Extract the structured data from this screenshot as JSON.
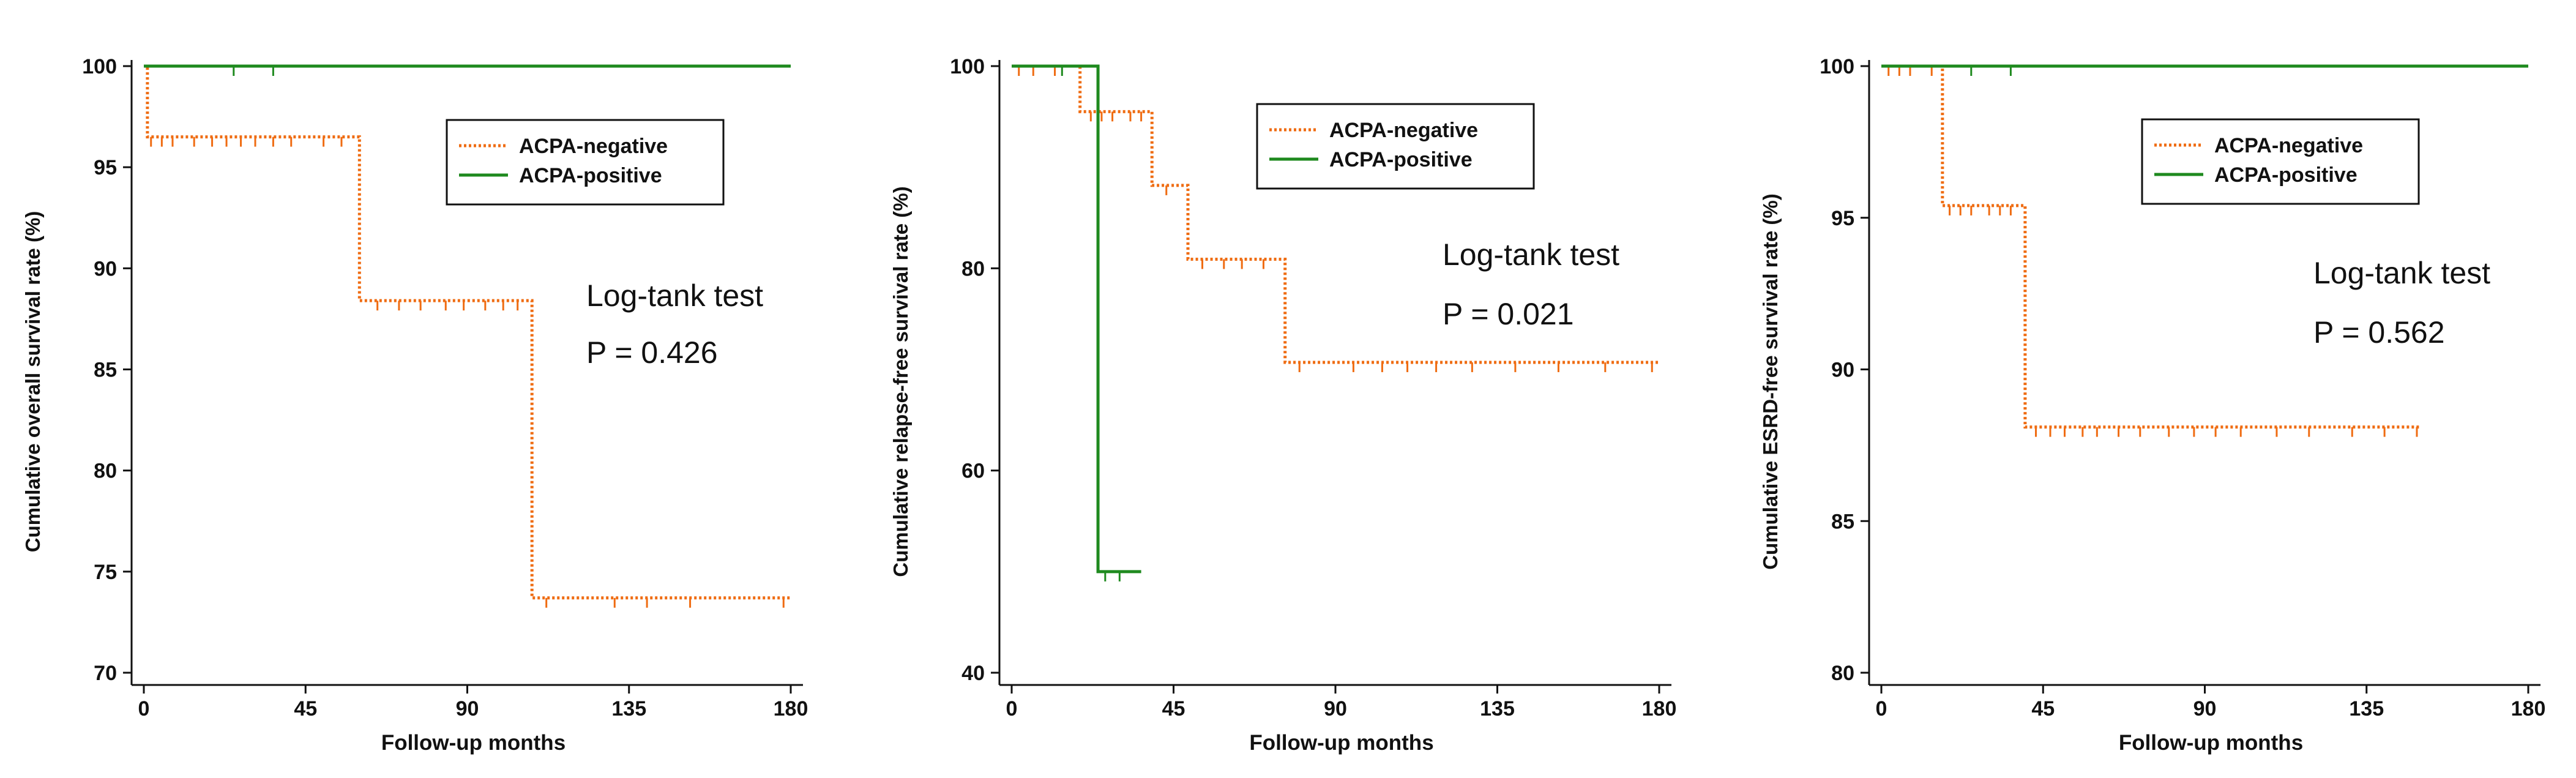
{
  "colors": {
    "negative": "#ef6c12",
    "positive": "#1f8a1f",
    "axis": "#111111"
  },
  "chart_data": [
    {
      "type": "line",
      "subtype": "kaplan-meier",
      "ylabel": "Cumulative overall survival rate (%)",
      "xlabel": "Follow-up months",
      "ylim": [
        70,
        100
      ],
      "xlim": [
        0,
        180
      ],
      "yticks": [
        70,
        75,
        80,
        85,
        90,
        95,
        100
      ],
      "xticks": [
        0,
        45,
        90,
        135,
        180
      ],
      "legend": {
        "position": "top-center",
        "entries": [
          "ACPA-negative",
          "ACPA-positive"
        ]
      },
      "annotation": {
        "test": "Log-tank test",
        "pvalue": "P = 0.426"
      },
      "series": [
        {
          "name": "ACPA-negative",
          "style": "dotted",
          "color": "#ef6c12",
          "steps": [
            [
              0,
              100
            ],
            [
              1,
              96.5
            ],
            [
              60,
              88.4
            ],
            [
              108,
              73.7
            ],
            [
              180,
              73.7
            ]
          ],
          "censors": [
            2,
            5,
            8,
            14,
            19,
            23,
            27,
            31,
            36,
            41,
            50,
            55,
            65,
            71,
            77,
            84,
            89,
            95,
            100,
            104,
            112,
            131,
            140,
            152,
            178
          ]
        },
        {
          "name": "ACPA-positive",
          "style": "solid",
          "color": "#1f8a1f",
          "steps": [
            [
              0,
              100
            ],
            [
              180,
              100
            ]
          ],
          "censors": [
            25,
            36
          ]
        }
      ]
    },
    {
      "type": "line",
      "subtype": "kaplan-meier",
      "ylabel": "Cumulative relapse-free survival rate (%)",
      "xlabel": "Follow-up months",
      "ylim": [
        40,
        100
      ],
      "xlim": [
        0,
        180
      ],
      "yticks": [
        40,
        60,
        80,
        100
      ],
      "xticks": [
        0,
        45,
        90,
        135,
        180
      ],
      "legend": {
        "position": "top-center",
        "entries": [
          "ACPA-negative",
          "ACPA-positive"
        ]
      },
      "annotation": {
        "test": "Log-tank test",
        "pvalue": "P = 0.021"
      },
      "series": [
        {
          "name": "ACPA-negative",
          "style": "dotted",
          "color": "#ef6c12",
          "steps": [
            [
              0,
              100
            ],
            [
              19,
              95.5
            ],
            [
              39,
              88.2
            ],
            [
              49,
              80.9
            ],
            [
              76,
              70.7
            ],
            [
              180,
              70.7
            ]
          ],
          "censors": [
            2,
            6,
            12,
            22,
            25,
            28,
            33,
            36,
            43,
            53,
            59,
            64,
            70,
            80,
            95,
            103,
            110,
            118,
            128,
            140,
            152,
            165,
            178
          ]
        },
        {
          "name": "ACPA-positive",
          "style": "solid",
          "color": "#1f8a1f",
          "steps": [
            [
              0,
              100
            ],
            [
              24,
              50
            ],
            [
              36,
              50
            ]
          ],
          "censors": [
            14,
            26,
            30
          ]
        }
      ]
    },
    {
      "type": "line",
      "subtype": "kaplan-meier",
      "ylabel": "Cumulative ESRD-free survival rate (%)",
      "xlabel": "Follow-up months",
      "ylim": [
        80,
        100
      ],
      "xlim": [
        0,
        180
      ],
      "yticks": [
        80,
        85,
        90,
        95,
        100
      ],
      "xticks": [
        0,
        45,
        90,
        135,
        180
      ],
      "legend": {
        "position": "top-center",
        "entries": [
          "ACPA-negative",
          "ACPA-positive"
        ]
      },
      "annotation": {
        "test": "Log-tank test",
        "pvalue": "P = 0.562"
      },
      "series": [
        {
          "name": "ACPA-negative",
          "style": "dotted",
          "color": "#ef6c12",
          "steps": [
            [
              0,
              100
            ],
            [
              17,
              95.4
            ],
            [
              40,
              88.1
            ],
            [
              150,
              88.1
            ]
          ],
          "censors": [
            2,
            5,
            8,
            14,
            19,
            22,
            25,
            30,
            33,
            36,
            43,
            47,
            51,
            56,
            60,
            66,
            72,
            80,
            87,
            93,
            100,
            110,
            119,
            131,
            140,
            149
          ]
        },
        {
          "name": "ACPA-positive",
          "style": "solid",
          "color": "#1f8a1f",
          "steps": [
            [
              0,
              100
            ],
            [
              180,
              100
            ]
          ],
          "censors": [
            25,
            36
          ]
        }
      ]
    }
  ]
}
